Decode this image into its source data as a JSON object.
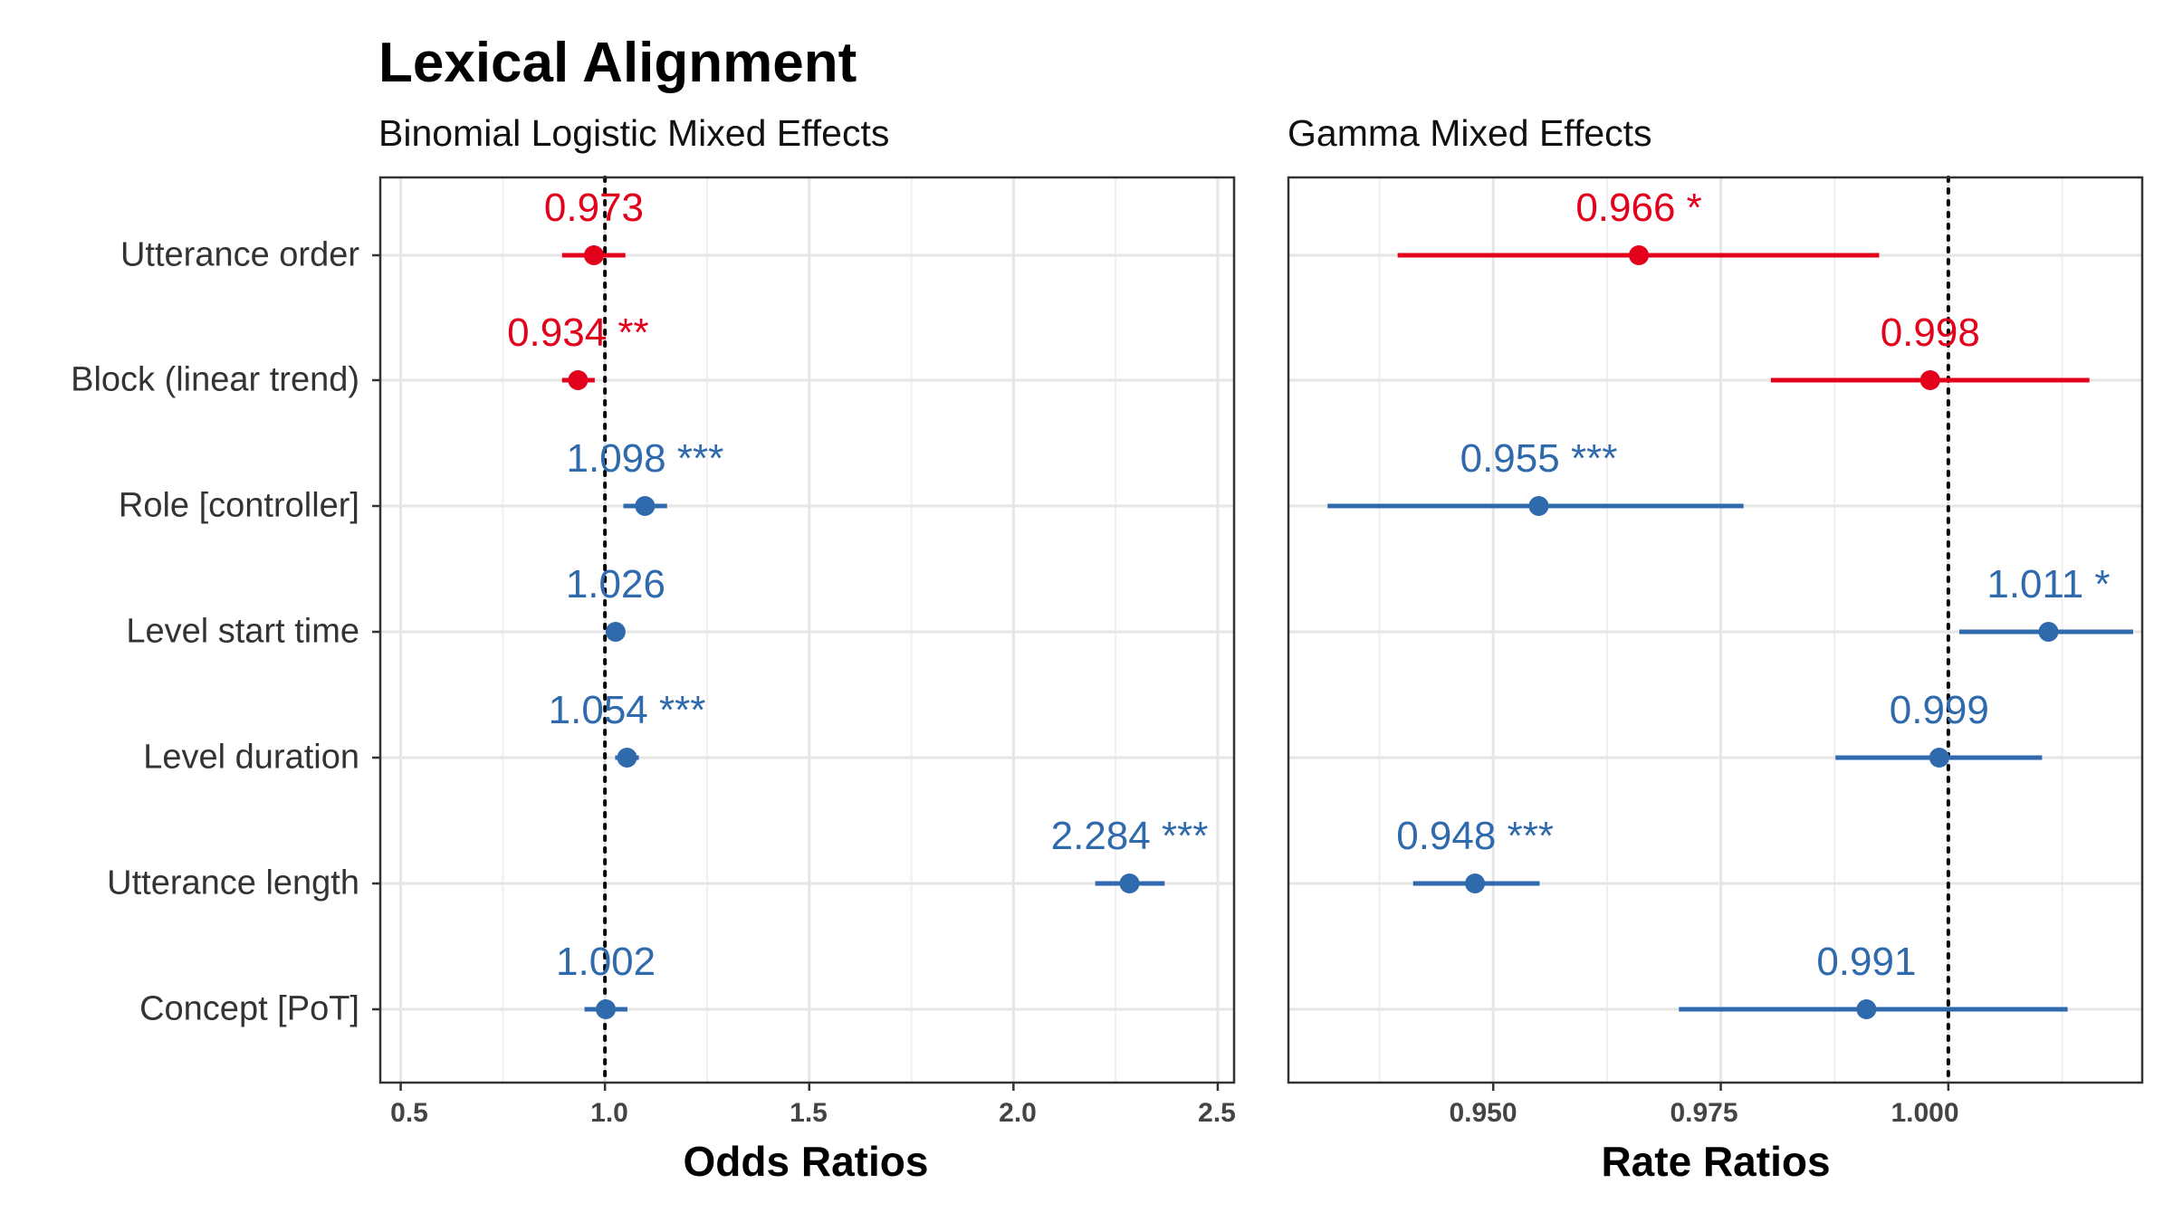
{
  "title": "Lexical Alignment",
  "categories": [
    "Utterance order",
    "Block (linear trend)",
    "Role [controller]",
    "Level start time",
    "Level duration",
    "Utterance length",
    "Concept [PoT]"
  ],
  "colors": {
    "negative": "#e3001b",
    "positive": "#2f6aad",
    "grid": "#e6e6e6",
    "frame": "#333333",
    "reference_line": "#000000"
  },
  "chart_data": [
    {
      "type": "forest",
      "subtitle": "Binomial Logistic Mixed Effects",
      "xlabel": "Odds Ratios",
      "xlim": [
        0.45,
        2.54
      ],
      "ticks": [
        "0.5",
        "1.0",
        "1.5",
        "2.0",
        "2.5"
      ],
      "tick_values": [
        0.5,
        1.0,
        1.5,
        2.0,
        2.5
      ],
      "reference_line": 1.0,
      "grid": true,
      "points": [
        {
          "category": "Utterance order",
          "estimate": 0.973,
          "ci_low": 0.895,
          "ci_high": 1.05,
          "label": "0.973",
          "direction": "negative"
        },
        {
          "category": "Block (linear trend)",
          "estimate": 0.934,
          "ci_low": 0.895,
          "ci_high": 0.975,
          "label": "0.934 **",
          "direction": "negative"
        },
        {
          "category": "Role [controller]",
          "estimate": 1.098,
          "ci_low": 1.045,
          "ci_high": 1.152,
          "label": "1.098 ***",
          "direction": "positive"
        },
        {
          "category": "Level start time",
          "estimate": 1.026,
          "ci_low": 1.005,
          "ci_high": 1.048,
          "label": "1.026",
          "direction": "positive"
        },
        {
          "category": "Level duration",
          "estimate": 1.054,
          "ci_low": 1.025,
          "ci_high": 1.083,
          "label": "1.054 ***",
          "direction": "positive"
        },
        {
          "category": "Utterance length",
          "estimate": 2.284,
          "ci_low": 2.2,
          "ci_high": 2.37,
          "label": "2.284 ***",
          "direction": "positive"
        },
        {
          "category": "Concept [PoT]",
          "estimate": 1.002,
          "ci_low": 0.95,
          "ci_high": 1.055,
          "label": "1.002",
          "direction": "positive"
        }
      ]
    },
    {
      "type": "forest",
      "subtitle": "Gamma Mixed Effects",
      "xlabel": "Rate Ratios",
      "xlim": [
        0.9275,
        1.0213
      ],
      "ticks": [
        "0.950",
        "0.975",
        "1.000"
      ],
      "tick_values": [
        0.95,
        0.975,
        1.0
      ],
      "minor_ticks": [
        0.9375,
        0.9625,
        0.9875,
        1.0125
      ],
      "reference_line": 1.0,
      "grid": true,
      "points": [
        {
          "category": "Utterance order",
          "estimate": 0.966,
          "ci_low": 0.9395,
          "ci_high": 0.9924,
          "label": "0.966 *",
          "direction": "negative"
        },
        {
          "category": "Block (linear trend)",
          "estimate": 0.998,
          "ci_low": 0.9805,
          "ci_high": 1.0155,
          "label": "0.998",
          "direction": "negative"
        },
        {
          "category": "Role [controller]",
          "estimate": 0.955,
          "ci_low": 0.9318,
          "ci_high": 0.9775,
          "label": "0.955 ***",
          "direction": "positive"
        },
        {
          "category": "Level start time",
          "estimate": 1.011,
          "ci_low": 1.0012,
          "ci_high": 1.0203,
          "label": "1.011 *",
          "direction": "positive"
        },
        {
          "category": "Level duration",
          "estimate": 0.999,
          "ci_low": 0.9876,
          "ci_high": 1.0103,
          "label": "0.999",
          "direction": "positive"
        },
        {
          "category": "Utterance length",
          "estimate": 0.948,
          "ci_low": 0.9412,
          "ci_high": 0.9551,
          "label": "0.948 ***",
          "direction": "positive"
        },
        {
          "category": "Concept [PoT]",
          "estimate": 0.991,
          "ci_low": 0.9704,
          "ci_high": 1.0131,
          "label": "0.991",
          "direction": "positive"
        }
      ]
    }
  ]
}
